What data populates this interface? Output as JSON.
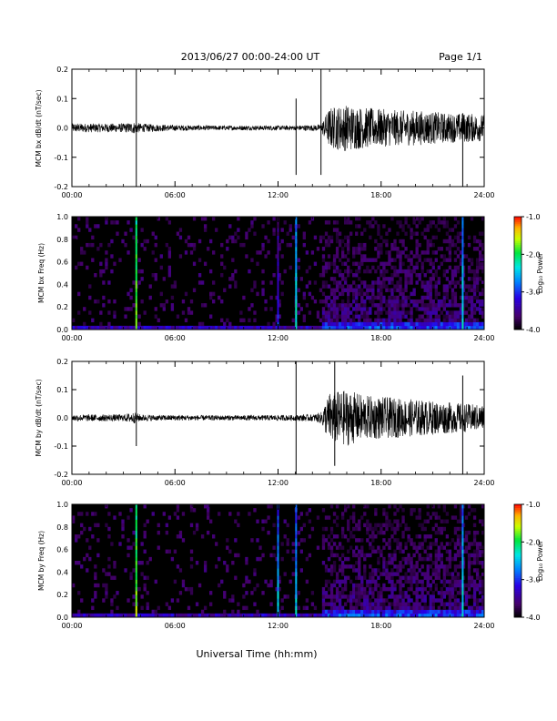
{
  "header": {
    "title": "2013/06/27  00:00-24:00 UT",
    "page": "Page 1/1"
  },
  "footer": {
    "xlabel": "Universal Time (hh:mm)"
  },
  "colors": {
    "background": "#ffffff",
    "trace": "#000000",
    "spectrogram_background": "#000000"
  },
  "chart_data": [
    {
      "type": "line",
      "ylabel": "MCM bx dB/dt (nT/sec)",
      "xlim": [
        0,
        24
      ],
      "ylim": [
        -0.2,
        0.2
      ],
      "x_ticks": [
        "00:00",
        "06:00",
        "12:00",
        "18:00",
        "24:00"
      ],
      "y_ticks": [
        "0.2",
        "0.1",
        "0.0",
        "-0.1",
        "-0.2"
      ],
      "y_tick_values": [
        0.2,
        0.1,
        0.0,
        -0.1,
        -0.2
      ],
      "envelope": {
        "x_hours": [
          0,
          1,
          2,
          3,
          3.6,
          4,
          5,
          6,
          8,
          10,
          12,
          13,
          13.5,
          14,
          14.5,
          15,
          16,
          17,
          18,
          19,
          20,
          21,
          22,
          23,
          24
        ],
        "amplitude": [
          0.015,
          0.015,
          0.015,
          0.015,
          0.02,
          0.015,
          0.012,
          0.01,
          0.008,
          0.008,
          0.008,
          0.008,
          0.01,
          0.01,
          0.012,
          0.07,
          0.08,
          0.07,
          0.065,
          0.06,
          0.06,
          0.055,
          0.05,
          0.05,
          0.045
        ]
      },
      "spikes": [
        {
          "x": 3.75,
          "y_max": 0.2,
          "y_min": -0.2
        },
        {
          "x": 13.05,
          "y_max": 0.1,
          "y_min": -0.16
        },
        {
          "x": 14.5,
          "y_max": 0.2,
          "y_min": -0.16
        },
        {
          "x": 22.75,
          "y_max": 0.05,
          "y_min": -0.2
        }
      ]
    },
    {
      "type": "heatmap",
      "ylabel": "MCM bx Freq (Hz)",
      "colorbar_label": "Log₁₀ Power",
      "colorbar_ticks": [
        "-1.0",
        "-2.0",
        "-3.0",
        "-4.0"
      ],
      "colorbar_range": [
        -4.0,
        -1.0
      ],
      "xlim": [
        0,
        24
      ],
      "ylim": [
        0,
        1.0
      ],
      "x_ticks": [
        "00:00",
        "06:00",
        "12:00",
        "18:00",
        "24:00"
      ],
      "y_ticks": [
        "1.0",
        "0.8",
        "0.6",
        "0.4",
        "0.2",
        "0.0"
      ],
      "y_tick_values": [
        1.0,
        0.8,
        0.6,
        0.4,
        0.2,
        0.0
      ],
      "active_start_hour": 14.5,
      "bright_lines": [
        {
          "x": 3.75,
          "level": -1.6
        },
        {
          "x": 12.0,
          "level": -3.0
        },
        {
          "x": 13.05,
          "level": -2.2
        },
        {
          "x": 22.75,
          "level": -2.3
        }
      ]
    },
    {
      "type": "line",
      "ylabel": "MCM by dB/dt (nT/sec)",
      "xlim": [
        0,
        24
      ],
      "ylim": [
        -0.2,
        0.2
      ],
      "x_ticks": [
        "00:00",
        "06:00",
        "12:00",
        "18:00",
        "24:00"
      ],
      "y_ticks": [
        "0.2",
        "0.1",
        "0.0",
        "-0.1",
        "-0.2"
      ],
      "y_tick_values": [
        0.2,
        0.1,
        0.0,
        -0.1,
        -0.2
      ],
      "envelope": {
        "x_hours": [
          0,
          1,
          2,
          3,
          3.6,
          4,
          5,
          6,
          8,
          10,
          12,
          13,
          13.5,
          14,
          14.5,
          15,
          16,
          17,
          18,
          19,
          20,
          21,
          22,
          23,
          24
        ],
        "amplitude": [
          0.012,
          0.012,
          0.012,
          0.012,
          0.02,
          0.012,
          0.01,
          0.01,
          0.009,
          0.009,
          0.01,
          0.01,
          0.012,
          0.012,
          0.02,
          0.09,
          0.1,
          0.08,
          0.075,
          0.07,
          0.065,
          0.06,
          0.055,
          0.05,
          0.045
        ]
      },
      "spikes": [
        {
          "x": 3.75,
          "y_max": 0.2,
          "y_min": -0.1
        },
        {
          "x": 13.05,
          "y_max": 0.2,
          "y_min": -0.2
        },
        {
          "x": 15.3,
          "y_max": 0.2,
          "y_min": -0.17
        },
        {
          "x": 22.75,
          "y_max": 0.15,
          "y_min": -0.2
        }
      ]
    },
    {
      "type": "heatmap",
      "ylabel": "MCM by Freq (Hz)",
      "colorbar_label": "Log₁₀ Power",
      "colorbar_ticks": [
        "-1.0",
        "-2.0",
        "-3.0",
        "-4.0"
      ],
      "colorbar_range": [
        -4.0,
        -1.0
      ],
      "xlim": [
        0,
        24
      ],
      "ylim": [
        0,
        1.0
      ],
      "x_ticks": [
        "00:00",
        "06:00",
        "12:00",
        "18:00",
        "24:00"
      ],
      "y_ticks": [
        "1.0",
        "0.8",
        "0.6",
        "0.4",
        "0.2",
        "0.0"
      ],
      "y_tick_values": [
        1.0,
        0.8,
        0.6,
        0.4,
        0.2,
        0.0
      ],
      "active_start_hour": 14.5,
      "bright_lines": [
        {
          "x": 3.75,
          "level": -1.6
        },
        {
          "x": 12.0,
          "level": -2.4
        },
        {
          "x": 13.05,
          "level": -2.4
        },
        {
          "x": 22.75,
          "level": -2.3
        }
      ]
    }
  ]
}
